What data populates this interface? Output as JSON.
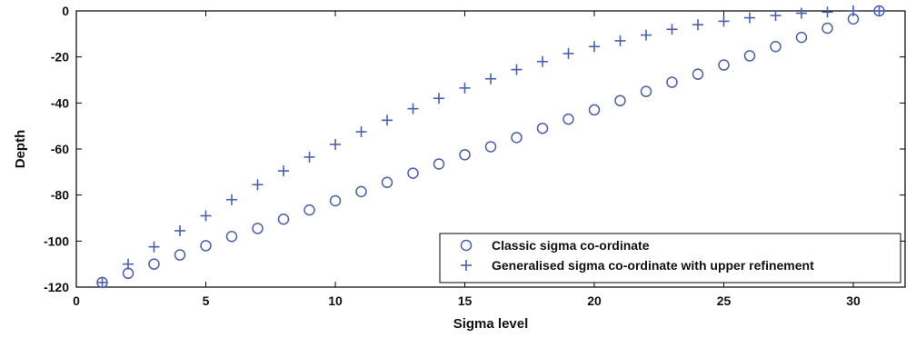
{
  "chart_data": {
    "type": "scatter",
    "title": "",
    "xlabel": "Sigma level",
    "ylabel": "Depth",
    "xlim": [
      0,
      32
    ],
    "ylim": [
      -120,
      0
    ],
    "xticks": [
      0,
      5,
      10,
      15,
      20,
      25,
      30
    ],
    "yticks": [
      0,
      -20,
      -40,
      -60,
      -80,
      -100,
      -120
    ],
    "grid": false,
    "legend_position": "bottom-right",
    "series": [
      {
        "name": "Classic sigma co-ordinate",
        "marker": "circle",
        "color": "#4a5fb0",
        "x": [
          1,
          2,
          3,
          4,
          5,
          6,
          7,
          8,
          9,
          10,
          11,
          12,
          13,
          14,
          15,
          16,
          17,
          18,
          19,
          20,
          21,
          22,
          23,
          24,
          25,
          26,
          27,
          28,
          29,
          30,
          31
        ],
        "y": [
          -118,
          -114,
          -110,
          -106,
          -102,
          -98,
          -94.5,
          -90.5,
          -86.5,
          -82.5,
          -78.5,
          -74.5,
          -70.5,
          -66.5,
          -62.5,
          -59,
          -55,
          -51,
          -47,
          -43,
          -39,
          -35,
          -31,
          -27.5,
          -23.5,
          -19.5,
          -15.5,
          -11.5,
          -7.5,
          -3.5,
          0
        ]
      },
      {
        "name": "Generalised sigma co-ordinate with upper refinement",
        "marker": "plus",
        "color": "#4a5fb0",
        "x": [
          1,
          2,
          3,
          4,
          5,
          6,
          7,
          8,
          9,
          10,
          11,
          12,
          13,
          14,
          15,
          16,
          17,
          18,
          19,
          20,
          21,
          22,
          23,
          24,
          25,
          26,
          27,
          28,
          29,
          30,
          31
        ],
        "y": [
          -118,
          -110,
          -102.5,
          -95.5,
          -89,
          -82,
          -75.5,
          -69.5,
          -63.5,
          -58,
          -52.5,
          -47.5,
          -42.5,
          -38,
          -33.5,
          -29.5,
          -25.5,
          -22,
          -18.5,
          -15.5,
          -13,
          -10.5,
          -8,
          -6,
          -4.5,
          -3,
          -2,
          -1,
          -0.5,
          0,
          0
        ]
      }
    ]
  }
}
